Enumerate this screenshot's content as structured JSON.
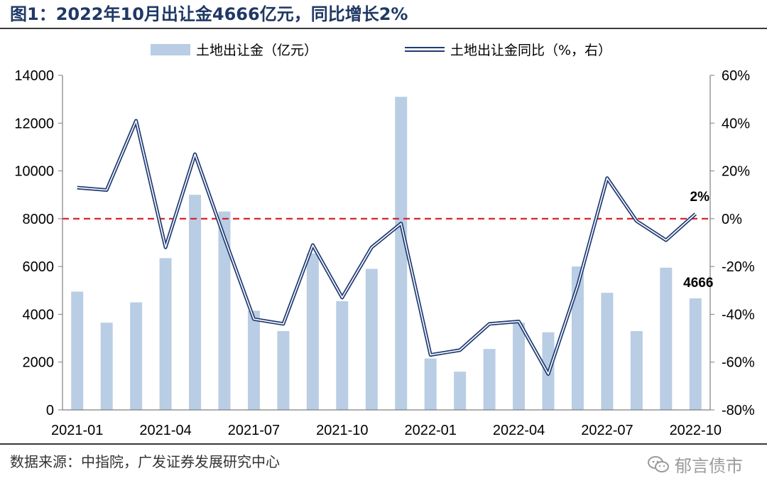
{
  "figure": {
    "title": "图1：2022年10月出让金4666亿元，同比增长2%",
    "source": "数据来源：中指院，广发证券发展研究中心",
    "watermark": "郁言债市",
    "watermark_icon": "wechat-icon"
  },
  "chart_data": {
    "type": "bar",
    "categories": [
      "2021-01",
      "2021-02",
      "2021-03",
      "2021-04",
      "2021-05",
      "2021-06",
      "2021-07",
      "2021-08",
      "2021-09",
      "2021-10",
      "2021-11",
      "2021-12",
      "2022-01",
      "2022-02",
      "2022-03",
      "2022-04",
      "2022-05",
      "2022-06",
      "2022-07",
      "2022-08",
      "2022-09",
      "2022-10"
    ],
    "x_tick_labels": [
      "2021-01",
      "2021-04",
      "2021-07",
      "2021-10",
      "2022-01",
      "2022-04",
      "2022-07",
      "2022-10"
    ],
    "series": [
      {
        "name": "土地出让金（亿元）",
        "type": "bar",
        "axis": "left",
        "color": "#b9cde4",
        "values": [
          4950,
          3650,
          4500,
          6350,
          9000,
          8300,
          4150,
          3300,
          6550,
          4550,
          5900,
          13100,
          2150,
          1600,
          2550,
          3650,
          3250,
          6000,
          4900,
          3300,
          5950,
          4666
        ]
      },
      {
        "name": "土地出让金同比（%，右）",
        "type": "line",
        "axis": "right",
        "color": "#1f3b73",
        "values": [
          13,
          12,
          41,
          -12,
          27,
          -8,
          -42,
          -44,
          -11,
          -33,
          -12,
          -2,
          -57,
          -55,
          -44,
          -43,
          -65,
          -28,
          17,
          -1,
          -9,
          2
        ]
      }
    ],
    "y_left": {
      "min": 0,
      "max": 14000,
      "ticks": [
        "0",
        "2000",
        "4000",
        "6000",
        "8000",
        "10000",
        "12000",
        "14000"
      ]
    },
    "y_right": {
      "min": -80,
      "max": 60,
      "ticks": [
        "-80%",
        "-60%",
        "-40%",
        "-20%",
        "0%",
        "20%",
        "40%",
        "60%"
      ]
    },
    "reference_line": {
      "value": 0,
      "axis": "right",
      "color": "#d9262a",
      "style": "dashed"
    },
    "annotations": [
      {
        "text": "4666",
        "series": 0,
        "index": 21
      },
      {
        "text": "2%",
        "series": 1,
        "index": 21
      }
    ],
    "legend": "top-center",
    "grid": false
  }
}
